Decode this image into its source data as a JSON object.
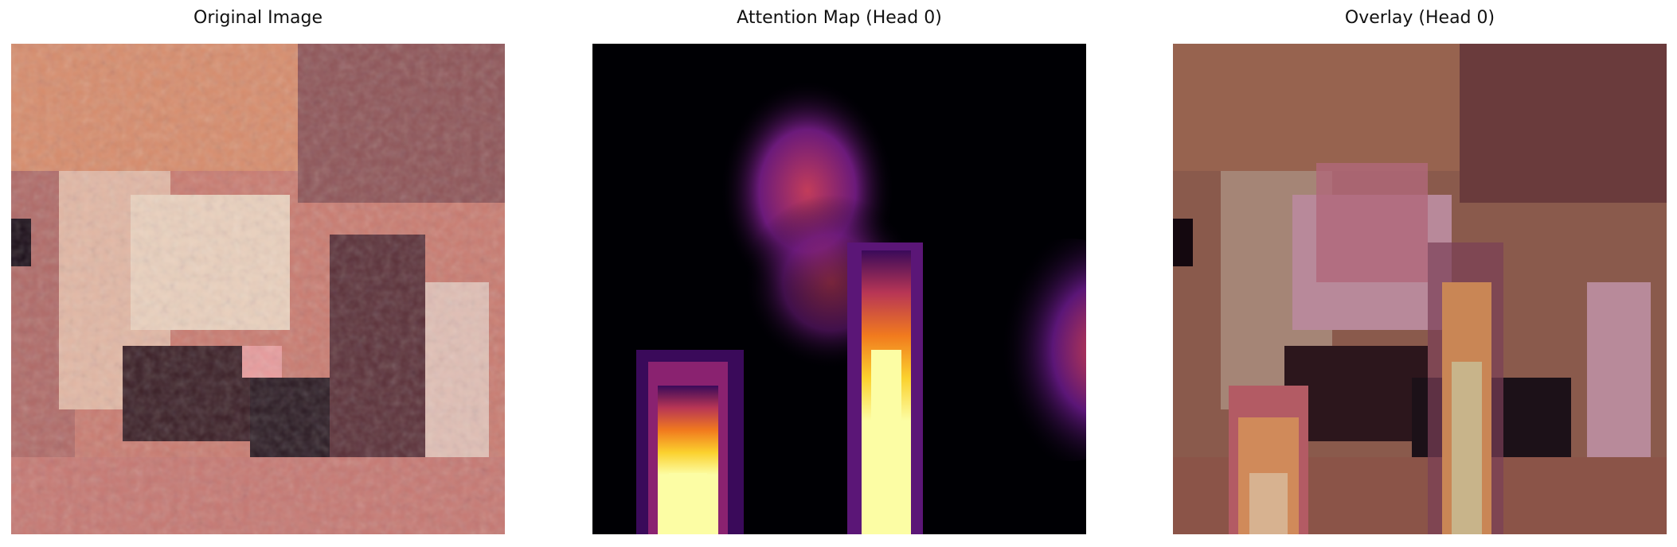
{
  "panels": [
    {
      "title": "Original Image"
    },
    {
      "title": "Attention Map (Head 0)"
    },
    {
      "title": "Overlay (Head 0)"
    }
  ]
}
